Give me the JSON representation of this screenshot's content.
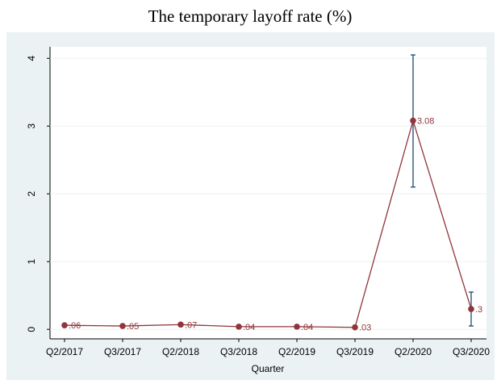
{
  "chart_data": {
    "type": "line",
    "title": "The temporary layoff rate (%)",
    "x_label": "Quarter",
    "categories": [
      "Q2/2017",
      "Q3/2017",
      "Q2/2018",
      "Q3/2018",
      "Q2/2019",
      "Q3/2019",
      "Q2/2020",
      "Q3/2020"
    ],
    "series": [
      {
        "color": "#90353b",
        "error_color": "#1a476f",
        "values": [
          0.06,
          0.05,
          0.07,
          0.04,
          0.04,
          0.03,
          3.08,
          0.3
        ],
        "value_labels": [
          ".06",
          ".05",
          ".07",
          ".04",
          ".04",
          ".03",
          "3.08",
          ".3"
        ],
        "error_low": [
          null,
          null,
          0.05,
          null,
          null,
          null,
          2.1,
          0.05
        ],
        "error_high": [
          null,
          null,
          0.09,
          null,
          null,
          null,
          4.05,
          0.55
        ]
      }
    ],
    "ylim": [
      -0.14,
      4.17
    ],
    "yticks": [
      0,
      1,
      2,
      3,
      4
    ],
    "grid": true
  }
}
